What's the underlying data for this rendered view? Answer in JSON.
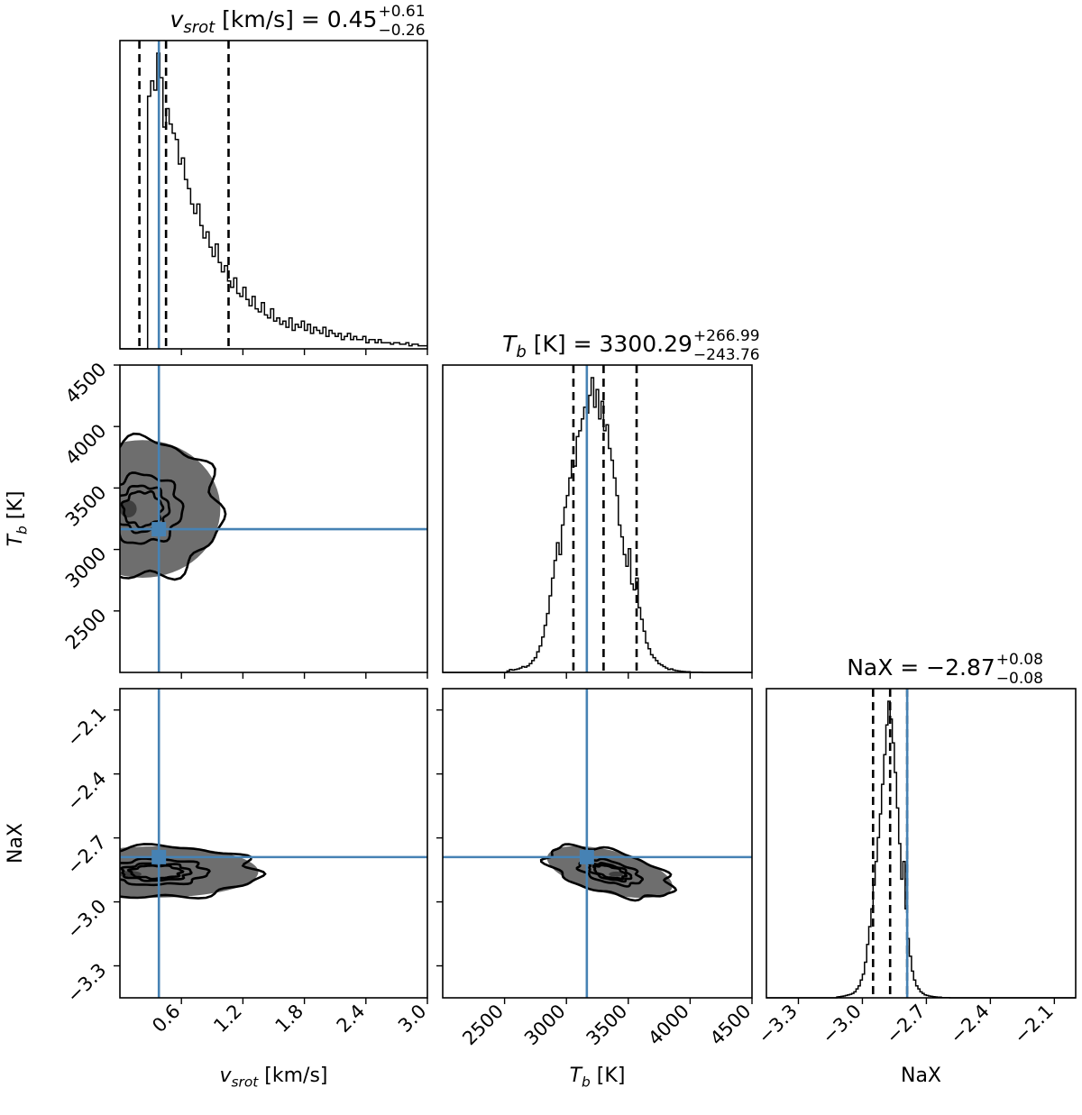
{
  "chart_data": {
    "type": "corner",
    "parameters": [
      {
        "key": "vsrot",
        "label": "v",
        "label_sub": "srot",
        "label_unit": " [km/s]",
        "range": [
          0.0,
          3.0
        ],
        "ticks": [
          0.6,
          1.2,
          1.8,
          2.4,
          3.0
        ],
        "tick_labels": [
          "0.6",
          "1.2",
          "1.8",
          "2.4",
          "3.0"
        ],
        "truth": 0.38,
        "quantiles": [
          0.19,
          0.45,
          1.06
        ]
      },
      {
        "key": "Tb",
        "label": "T",
        "label_sub": "b",
        "label_unit": " [K]",
        "range": [
          2000,
          4500
        ],
        "ticks": [
          2500,
          3000,
          3500,
          4000,
          4500
        ],
        "tick_labels": [
          "2500",
          "3000",
          "3500",
          "4000",
          "4500"
        ],
        "truth": 3165,
        "quantiles": [
          3056.53,
          3300.29,
          3567.28
        ]
      },
      {
        "key": "NaX",
        "label": "NaX",
        "label_sub": "",
        "label_unit": "",
        "range": [
          -3.45,
          -2.0
        ],
        "ticks": [
          -3.3,
          -3.0,
          -2.7,
          -2.4,
          -2.1
        ],
        "tick_labels": [
          "−3.3",
          "−3.0",
          "−2.7",
          "−2.4",
          "−2.1"
        ],
        "truth": -2.79,
        "quantiles": [
          -2.95,
          -2.87,
          -2.79
        ]
      }
    ],
    "titles": [
      {
        "param": "v",
        "sub": "srot",
        "rest": " [km/s] = 0.45",
        "plus": "+0.61",
        "minus": "−0.26"
      },
      {
        "param": "T",
        "sub": "b",
        "rest": " [K] = 3300.29",
        "plus": "+266.99",
        "minus": "−243.76"
      },
      {
        "param": "",
        "sub": "",
        "rest": "NaX = −2.87",
        "plus": "+0.08",
        "minus": "−0.08"
      }
    ],
    "axis_labels": {
      "x": [
        {
          "main": "v",
          "sub": "srot",
          "unit": " [km/s]"
        },
        {
          "main": "T",
          "sub": "b",
          "unit": " [K]"
        },
        {
          "main": "NaX",
          "sub": "",
          "unit": ""
        }
      ],
      "y": [
        {
          "main": "T",
          "sub": "b",
          "unit": " [K]"
        },
        {
          "main": "NaX",
          "sub": "",
          "unit": ""
        }
      ]
    },
    "histograms": [
      {
        "param": "vsrot",
        "x_start": 0.0,
        "bin_width": 0.03,
        "counts": [
          0,
          0,
          0,
          0,
          0,
          0,
          0,
          0,
          0,
          0.82,
          0.87,
          0.84,
          0.96,
          0.88,
          0.72,
          0.78,
          0.73,
          0.7,
          0.68,
          0.6,
          0.62,
          0.55,
          0.52,
          0.47,
          0.44,
          0.47,
          0.4,
          0.36,
          0.38,
          0.33,
          0.3,
          0.34,
          0.28,
          0.25,
          0.27,
          0.22,
          0.2,
          0.23,
          0.18,
          0.17,
          0.2,
          0.16,
          0.14,
          0.17,
          0.13,
          0.12,
          0.15,
          0.11,
          0.1,
          0.13,
          0.09,
          0.1,
          0.08,
          0.09,
          0.07,
          0.1,
          0.06,
          0.08,
          0.07,
          0.09,
          0.06,
          0.08,
          0.05,
          0.07,
          0.06,
          0.05,
          0.07,
          0.04,
          0.06,
          0.05,
          0.04,
          0.05,
          0.03,
          0.04,
          0.05,
          0.03,
          0.04,
          0.03,
          0.03,
          0.04,
          0.02,
          0.03,
          0.03,
          0.02,
          0.03,
          0.02,
          0.02,
          0.02,
          0.015,
          0.02,
          0.02,
          0.015,
          0.015,
          0.02,
          0.01,
          0.015,
          0.015,
          0.01,
          0.01,
          0.01
        ]
      },
      {
        "param": "Tb",
        "x_start": 2000,
        "bin_width": 20,
        "counts": [
          0,
          0,
          0,
          0,
          0,
          0,
          0,
          0,
          0,
          0,
          0,
          0,
          0,
          0,
          0,
          0,
          0,
          0,
          0,
          0,
          0,
          0,
          0,
          0,
          0,
          0,
          0.005,
          0.01,
          0.008,
          0.01,
          0.012,
          0.015,
          0.02,
          0.018,
          0.022,
          0.03,
          0.04,
          0.05,
          0.07,
          0.09,
          0.12,
          0.16,
          0.2,
          0.26,
          0.32,
          0.38,
          0.44,
          0.4,
          0.5,
          0.56,
          0.6,
          0.66,
          0.72,
          0.7,
          0.8,
          0.82,
          0.86,
          0.9,
          0.88,
          0.94,
          1.0,
          0.9,
          0.96,
          0.86,
          0.92,
          0.82,
          0.84,
          0.76,
          0.72,
          0.66,
          0.6,
          0.5,
          0.46,
          0.4,
          0.36,
          0.42,
          0.3,
          0.28,
          0.32,
          0.22,
          0.18,
          0.14,
          0.1,
          0.08,
          0.06,
          0.05,
          0.04,
          0.03,
          0.025,
          0.02,
          0.015,
          0.01,
          0.012,
          0.008,
          0.006,
          0.005,
          0.004,
          0.003,
          0.002,
          0.002,
          0.001,
          0.001,
          0.001,
          0.001,
          0.001,
          0,
          0,
          0,
          0,
          0,
          0,
          0,
          0,
          0,
          0,
          0,
          0,
          0,
          0,
          0,
          0,
          0,
          0,
          0,
          0
        ]
      },
      {
        "param": "NaX",
        "x_start": -3.45,
        "bin_width": 0.01,
        "counts": [
          0,
          0,
          0,
          0,
          0,
          0,
          0,
          0,
          0,
          0,
          0,
          0,
          0,
          0,
          0,
          0,
          0,
          0,
          0,
          0,
          0,
          0,
          0,
          0,
          0,
          0,
          0,
          0,
          0,
          0,
          0,
          0,
          0,
          0.003,
          0.004,
          0.005,
          0.006,
          0.008,
          0.01,
          0.012,
          0.015,
          0.02,
          0.03,
          0.04,
          0.06,
          0.08,
          0.12,
          0.18,
          0.24,
          0.3,
          0.38,
          0.46,
          0.54,
          0.62,
          0.72,
          0.82,
          0.92,
          1.0,
          0.94,
          0.86,
          0.76,
          0.64,
          0.52,
          0.4,
          0.46,
          0.3,
          0.2,
          0.14,
          0.09,
          0.06,
          0.04,
          0.03,
          0.02,
          0.015,
          0.01,
          0.008,
          0.006,
          0.005,
          0.004,
          0.003,
          0.002,
          0.002,
          0.001,
          0.001,
          0.001,
          0.001,
          0,
          0,
          0,
          0,
          0,
          0,
          0,
          0,
          0,
          0,
          0,
          0,
          0,
          0,
          0,
          0,
          0,
          0,
          0,
          0,
          0,
          0,
          0,
          0,
          0,
          0,
          0,
          0,
          0,
          0,
          0,
          0,
          0,
          0,
          0,
          0,
          0,
          0,
          0,
          0,
          0,
          0,
          0,
          0,
          0,
          0,
          0,
          0,
          0,
          0,
          0,
          0,
          0,
          0,
          0,
          0,
          0,
          0,
          0,
          0,
          0,
          0,
          0,
          0
        ]
      }
    ],
    "joint_panels": [
      {
        "x": "vsrot",
        "y": "Tb",
        "center": [
          0.22,
          3330
        ],
        "spread": [
          0.38,
          280
        ],
        "peak": [
          0.08,
          3330
        ],
        "levels": [
          0.5,
          1.0,
          1.5,
          2.0
        ]
      },
      {
        "x": "vsrot",
        "y": "NaX",
        "center": [
          0.35,
          -2.86
        ],
        "spread": [
          0.5,
          0.06
        ],
        "peak": [
          0.1,
          -2.87
        ],
        "levels": [
          0.5,
          1.0,
          1.5,
          2.0
        ]
      },
      {
        "x": "Tb",
        "y": "NaX",
        "center": [
          3350,
          -2.86
        ],
        "spread": [
          260,
          0.05
        ],
        "peak": [
          3400,
          -2.87
        ],
        "levels": [
          0.5,
          1.0,
          1.5,
          2.0
        ]
      }
    ],
    "colors": {
      "truth": "#4682b4",
      "contour": "#000000",
      "density_dark": "#333333"
    }
  }
}
